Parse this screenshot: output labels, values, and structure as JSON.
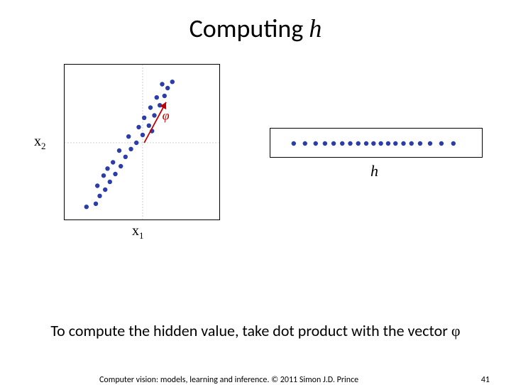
{
  "title_prefix": "Computing ",
  "title_var": "h",
  "scatter": {
    "type": "scatter",
    "xlim": [
      -1,
      1
    ],
    "ylim": [
      -1,
      1
    ],
    "grid_color": "#c0c0c0",
    "point_color": "#2a3da8",
    "point_radius": 3.2,
    "arrow_color": "#c00000",
    "arrow_label": "φ",
    "arrow_label_color": "#c00000",
    "arrow": {
      "x1": 0.02,
      "y1": 0.0,
      "x2": 0.3,
      "y2": 0.52
    },
    "x_label": "x",
    "x_sub": "1",
    "y_label": "x",
    "y_sub": "2",
    "points": [
      {
        "x": -0.72,
        "y": -0.82
      },
      {
        "x": -0.6,
        "y": -0.78
      },
      {
        "x": -0.55,
        "y": -0.68
      },
      {
        "x": -0.48,
        "y": -0.6
      },
      {
        "x": -0.58,
        "y": -0.55
      },
      {
        "x": -0.42,
        "y": -0.5
      },
      {
        "x": -0.5,
        "y": -0.42
      },
      {
        "x": -0.35,
        "y": -0.4
      },
      {
        "x": -0.28,
        "y": -0.3
      },
      {
        "x": -0.38,
        "y": -0.25
      },
      {
        "x": -0.22,
        "y": -0.18
      },
      {
        "x": -0.3,
        "y": -0.1
      },
      {
        "x": -0.15,
        "y": -0.08
      },
      {
        "x": -0.08,
        "y": 0.0
      },
      {
        "x": -0.18,
        "y": 0.08
      },
      {
        "x": 0.0,
        "y": 0.1
      },
      {
        "x": -0.05,
        "y": 0.2
      },
      {
        "x": 0.08,
        "y": 0.22
      },
      {
        "x": 0.02,
        "y": 0.32
      },
      {
        "x": 0.15,
        "y": 0.35
      },
      {
        "x": 0.1,
        "y": 0.45
      },
      {
        "x": 0.22,
        "y": 0.48
      },
      {
        "x": 0.18,
        "y": 0.58
      },
      {
        "x": 0.28,
        "y": 0.6
      },
      {
        "x": 0.32,
        "y": 0.7
      },
      {
        "x": 0.25,
        "y": 0.75
      },
      {
        "x": 0.38,
        "y": 0.78
      },
      {
        "x": 0.12,
        "y": 0.15
      },
      {
        "x": -0.45,
        "y": -0.33
      }
    ]
  },
  "projection": {
    "type": "scatter",
    "label": "h",
    "point_color": "#2a3da8",
    "point_radius": 3.2,
    "xlim": [
      -1.6,
      1.6
    ],
    "points_x": [
      -1.25,
      -1.08,
      -0.92,
      -0.78,
      -0.65,
      -0.52,
      -0.4,
      -0.28,
      -0.16,
      -0.05,
      0.06,
      0.17,
      0.28,
      0.4,
      0.52,
      0.65,
      0.8,
      0.97,
      1.15
    ]
  },
  "caption_text": "To compute the hidden value, take dot product with the vector ",
  "caption_phi": "φ",
  "footer_text": "Computer vision: models, learning and inference.   © 2011 Simon J.D. Prince",
  "page_number": "41"
}
